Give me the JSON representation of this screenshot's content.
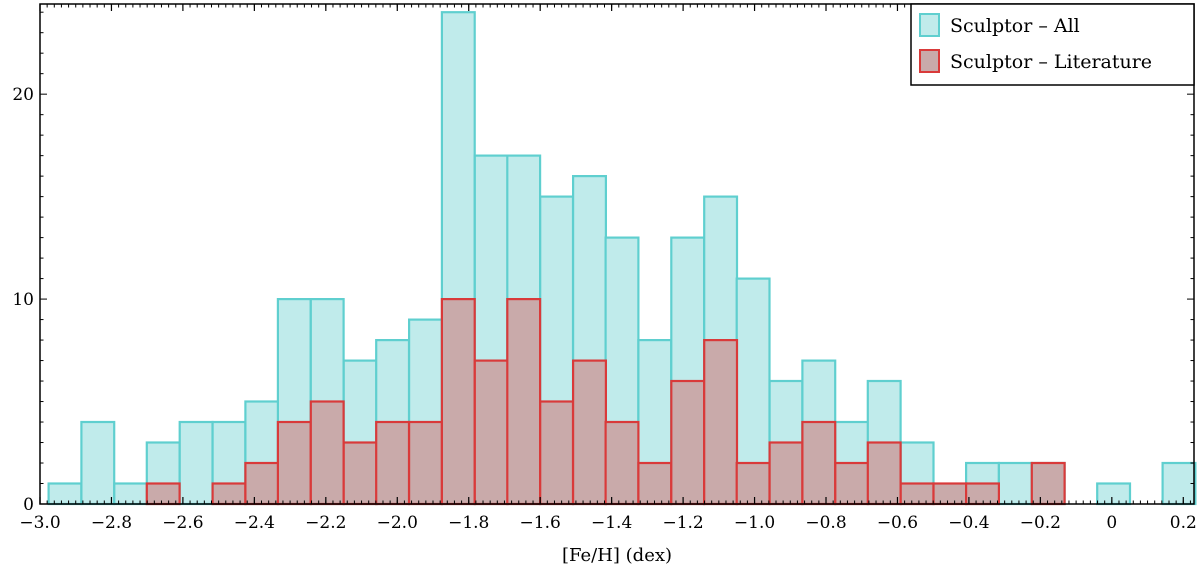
{
  "chart_data": {
    "type": "bar",
    "title": "",
    "xlabel": "[Fe/H] (dex)",
    "ylabel": "",
    "xlim": [
      -3.0,
      0.23
    ],
    "ylim": [
      0,
      24.4
    ],
    "bin_width": 0.0917,
    "x_ticks": [
      -3.0,
      -2.8,
      -2.6,
      -2.4,
      -2.2,
      -2.0,
      -1.8,
      -1.6,
      -1.4,
      -1.2,
      -1.0,
      -0.8,
      -0.6,
      -0.4,
      -0.2,
      0,
      0.2
    ],
    "x_tick_labels": [
      "−3.0",
      "−2.8",
      "−2.6",
      "−2.4",
      "−2.2",
      "−2.0",
      "−1.8",
      "−1.6",
      "−1.4",
      "−1.2",
      "−1.0",
      "−0.8",
      "−0.6",
      "−0.4",
      "−0.2",
      "0",
      "0.2"
    ],
    "y_ticks": [
      0,
      10,
      20
    ],
    "y_tick_labels": [
      "0",
      "10",
      "20"
    ],
    "grid": false,
    "legend_position": "top-right",
    "series": [
      {
        "name": "Sculptor – All",
        "color": "#5fcfcf",
        "fill": "#c0ebeb",
        "bin_starts": [
          -2.976,
          -2.884,
          -2.792,
          -2.701,
          -2.609,
          -2.517,
          -2.425,
          -2.334,
          -2.242,
          -2.15,
          -2.059,
          -1.967,
          -1.875,
          -1.783,
          -1.692,
          -1.6,
          -1.508,
          -1.417,
          -1.325,
          -1.233,
          -1.141,
          -1.05,
          -0.958,
          -0.866,
          -0.774,
          -0.683,
          -0.591,
          -0.499,
          -0.408,
          -0.316,
          -0.224,
          -0.133,
          -0.041,
          0.051,
          0.142
        ],
        "values": [
          1,
          4,
          1,
          3,
          4,
          4,
          5,
          10,
          10,
          7,
          8,
          9,
          24,
          17,
          17,
          15,
          16,
          13,
          8,
          13,
          15,
          11,
          6,
          7,
          4,
          6,
          3,
          0,
          2,
          2,
          2,
          0,
          1,
          0,
          2
        ]
      },
      {
        "name": "Sculptor – Literature",
        "color": "#d93a3a",
        "fill": "#c9aaaa",
        "bin_starts": [
          -2.976,
          -2.884,
          -2.792,
          -2.701,
          -2.609,
          -2.517,
          -2.425,
          -2.334,
          -2.242,
          -2.15,
          -2.059,
          -1.967,
          -1.875,
          -1.783,
          -1.692,
          -1.6,
          -1.508,
          -1.417,
          -1.325,
          -1.233,
          -1.141,
          -1.05,
          -0.958,
          -0.866,
          -0.774,
          -0.683,
          -0.591,
          -0.499,
          -0.408,
          -0.316,
          -0.224,
          -0.133,
          -0.041,
          0.051,
          0.142
        ],
        "values": [
          0,
          0,
          0,
          1,
          0,
          1,
          2,
          4,
          5,
          3,
          4,
          4,
          10,
          7,
          10,
          5,
          7,
          4,
          2,
          6,
          8,
          2,
          3,
          4,
          2,
          3,
          1,
          1,
          1,
          0,
          2,
          0,
          0,
          0,
          0
        ]
      }
    ]
  }
}
